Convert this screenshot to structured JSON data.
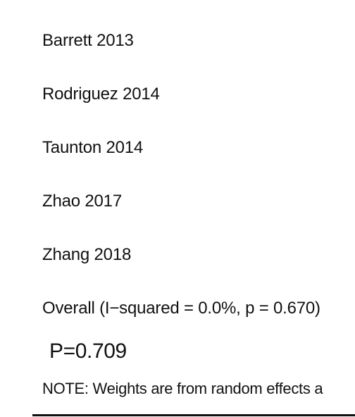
{
  "chart_data": {
    "type": "table",
    "studies": [
      "Barrett 2013",
      "Rodriguez 2014",
      "Taunton 2014",
      "Zhao 2017",
      "Zhang 2018"
    ],
    "overall_label": "Overall  (I−squared = 0.0%, p = 0.670)",
    "p_value_label": "P=0.709",
    "note": "NOTE: Weights are from random effects a"
  }
}
